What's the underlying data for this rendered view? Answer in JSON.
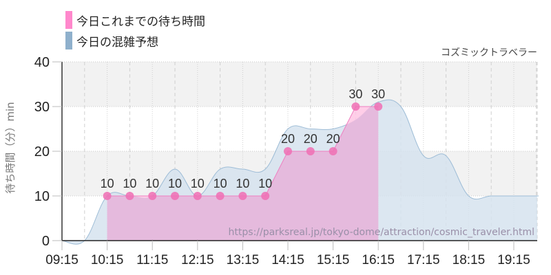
{
  "legend": {
    "items": [
      {
        "label": "今日これまでの待ち時間",
        "color": "#ff88cc"
      },
      {
        "label": "今日の混雑予想",
        "color": "#8fb0cc"
      }
    ]
  },
  "subtitle": "コズミックトラベラー",
  "watermark": "https://parksreal.jp/tokyo-dome/attraction/cosmic_traveler.html",
  "colors": {
    "actual_fill": "#e2b8dc",
    "actual_highlight": "#ffc6e4",
    "actual_point": "#f06eb4",
    "forecast_fill": "#d6e3ee",
    "forecast_line": "#9dbcd6",
    "band": "#f2f2f2"
  },
  "chart_data": {
    "type": "area",
    "title": "コズミックトラベラー",
    "xlabel": "",
    "ylabel": "待ち時間（分）min",
    "ylim": [
      0,
      40
    ],
    "yticks": [
      "0",
      "10",
      "20",
      "30",
      "40"
    ],
    "xticks": [
      "09:15",
      "10:15",
      "11:15",
      "12:15",
      "13:15",
      "14:15",
      "15:15",
      "16:15",
      "17:15",
      "18:15",
      "19:15"
    ],
    "grid": true,
    "legend_position": "top-left",
    "series": [
      {
        "name": "今日これまでの待ち時間",
        "type": "line-area-markers",
        "x": [
          "10:15",
          "10:45",
          "11:15",
          "11:45",
          "12:15",
          "12:45",
          "13:15",
          "13:45",
          "14:15",
          "14:45",
          "15:15",
          "15:45",
          "16:15"
        ],
        "values": [
          10,
          10,
          10,
          10,
          10,
          10,
          10,
          10,
          20,
          20,
          20,
          30,
          30
        ],
        "labels": [
          "10",
          "10",
          "10",
          "10",
          "10",
          "10",
          "10",
          "10",
          "20",
          "20",
          "20",
          "30",
          "30"
        ]
      },
      {
        "name": "今日の混雑予想",
        "type": "area",
        "x": [
          "09:15",
          "09:45",
          "10:15",
          "10:45",
          "11:15",
          "11:45",
          "12:15",
          "12:45",
          "13:15",
          "13:45",
          "14:15",
          "14:45",
          "15:15",
          "15:45",
          "16:15",
          "16:45",
          "17:15",
          "17:45",
          "18:15",
          "18:45",
          "19:15",
          "19:45"
        ],
        "values": [
          0,
          0,
          10,
          10,
          10,
          16,
          10,
          16,
          16,
          16,
          25,
          25,
          25,
          27,
          31,
          30,
          19,
          19,
          10,
          10,
          10,
          10
        ]
      }
    ]
  }
}
